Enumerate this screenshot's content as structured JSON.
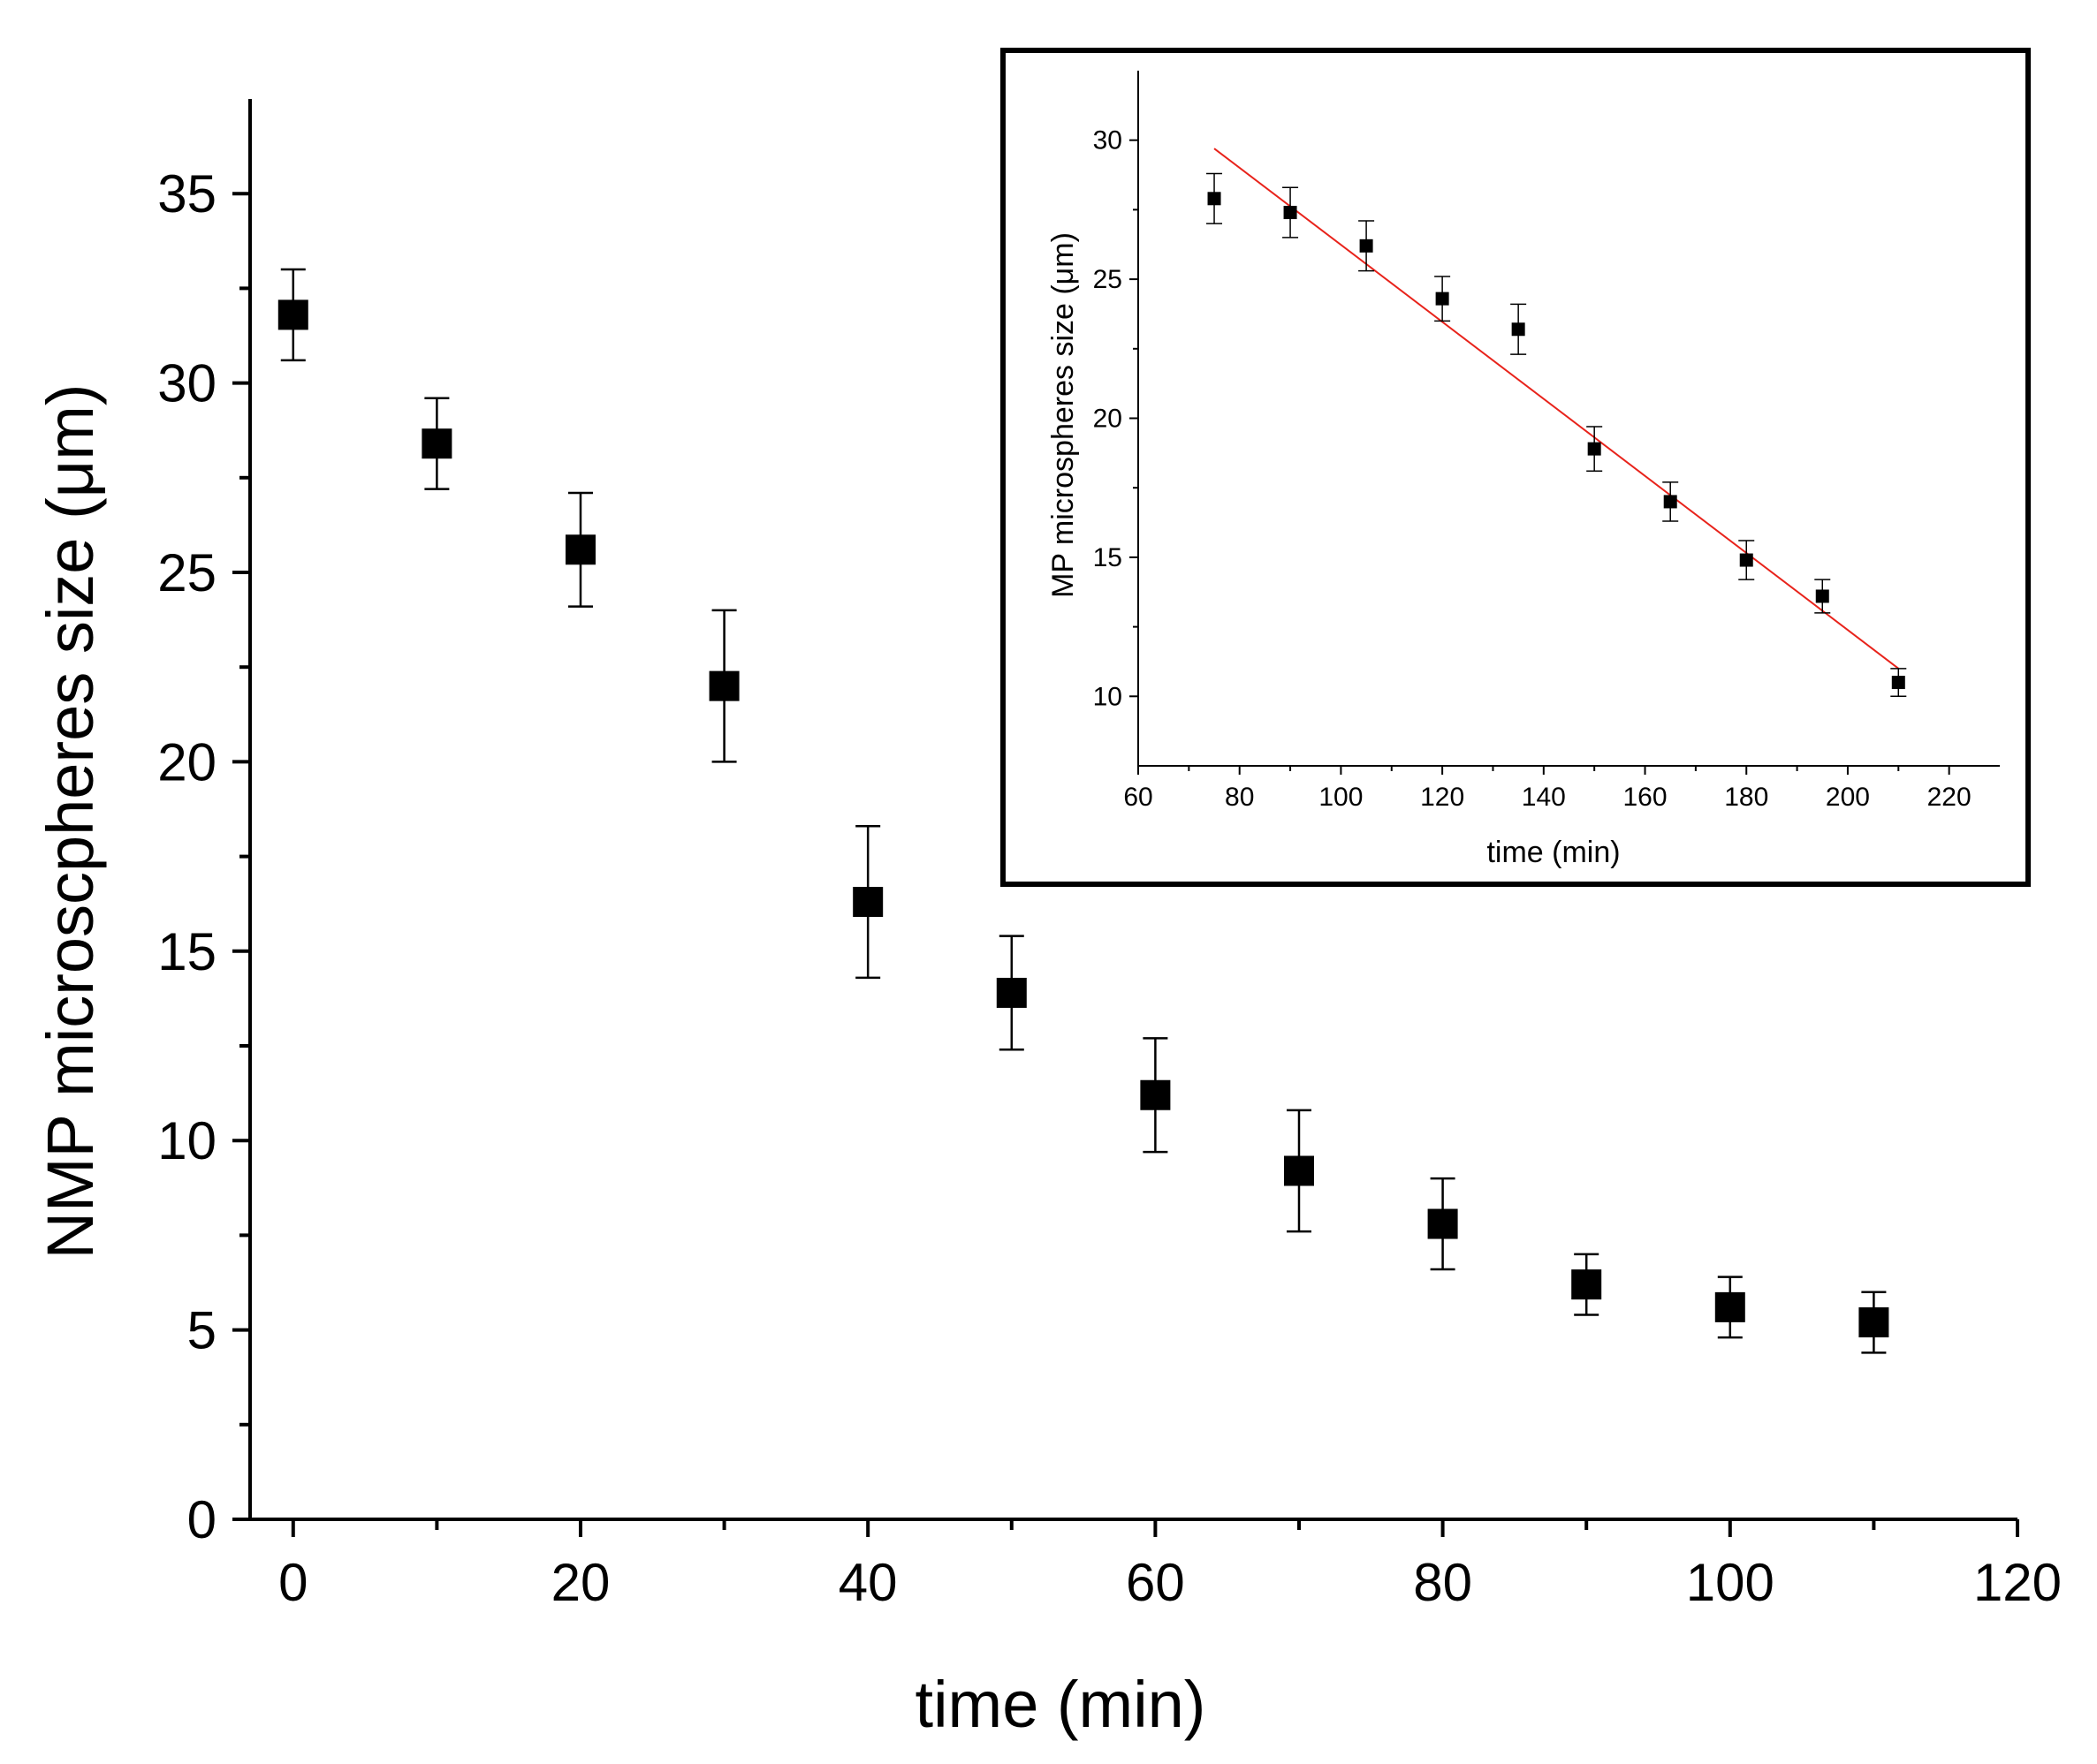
{
  "chart_data": [
    {
      "id": "main",
      "type": "scatter",
      "title": "",
      "xlabel": "time (min)",
      "ylabel": "NMP microscpheres size (μm)",
      "xlim": [
        -3,
        120
      ],
      "ylim": [
        0,
        37.5
      ],
      "xticks": [
        0,
        20,
        40,
        60,
        80,
        100,
        120
      ],
      "xticklabels": [
        "0",
        "20",
        "40",
        "60",
        "80",
        "100",
        "120"
      ],
      "yticks": [
        0,
        5,
        10,
        15,
        20,
        25,
        30,
        35
      ],
      "yticklabels": [
        "0",
        "5",
        "10",
        "15",
        "20",
        "25",
        "30",
        "35"
      ],
      "grid": false,
      "series": [
        {
          "name": "NMP microspheres size",
          "marker": "square",
          "color": "#000000",
          "x": [
            0,
            10,
            20,
            30,
            40,
            50,
            60,
            70,
            80,
            90,
            100,
            110
          ],
          "y": [
            31.8,
            28.4,
            25.6,
            22.0,
            16.3,
            13.9,
            11.2,
            9.2,
            7.8,
            6.2,
            5.6,
            5.2
          ],
          "err": [
            1.2,
            1.2,
            1.5,
            2.0,
            2.0,
            1.5,
            1.5,
            1.6,
            1.2,
            0.8,
            0.8,
            0.8
          ]
        }
      ]
    },
    {
      "id": "inset",
      "type": "scatter",
      "title": "",
      "xlabel": "time (min)",
      "ylabel": "MP microspheres size (μm)",
      "xlim": [
        60,
        230
      ],
      "ylim": [
        7.5,
        32.5
      ],
      "xticks": [
        60,
        80,
        100,
        120,
        140,
        160,
        180,
        200,
        220
      ],
      "xticklabels": [
        "60",
        "80",
        "100",
        "120",
        "140",
        "160",
        "180",
        "200",
        "220"
      ],
      "yticks": [
        10,
        15,
        20,
        25,
        30
      ],
      "yticklabels": [
        "10",
        "15",
        "20",
        "25",
        "30"
      ],
      "grid": false,
      "series": [
        {
          "name": "MP microspheres size",
          "marker": "square",
          "color": "#000000",
          "x": [
            75,
            90,
            105,
            120,
            135,
            150,
            165,
            180,
            195,
            210
          ],
          "y": [
            27.9,
            27.4,
            26.2,
            24.3,
            23.2,
            18.9,
            17.0,
            14.9,
            13.6,
            10.5
          ],
          "err": [
            0.9,
            0.9,
            0.9,
            0.8,
            0.9,
            0.8,
            0.7,
            0.7,
            0.6,
            0.5
          ]
        }
      ],
      "fit_line": {
        "name": "linear fit",
        "color": "#e8231b",
        "x": [
          75,
          210
        ],
        "y": [
          29.7,
          11.0
        ]
      }
    }
  ]
}
